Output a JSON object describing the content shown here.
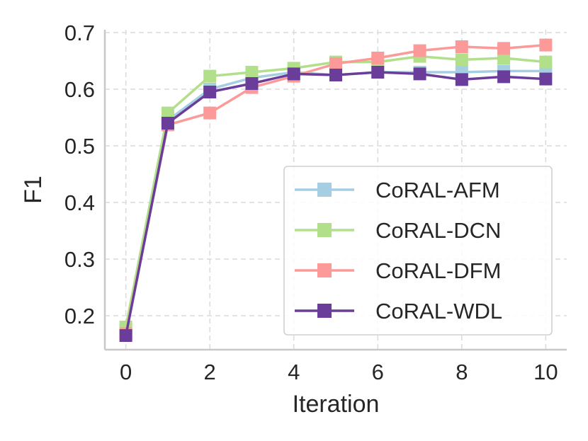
{
  "chart_data": {
    "type": "line",
    "title": "",
    "xlabel": "Iteration",
    "ylabel": "F1",
    "xlim": [
      -0.5,
      10.5
    ],
    "ylim": [
      0.14,
      0.705
    ],
    "x": [
      0,
      1,
      2,
      3,
      4,
      5,
      6,
      7,
      8,
      9,
      10
    ],
    "xticks": [
      "0",
      "2",
      "4",
      "6",
      "8",
      "10"
    ],
    "yticks": [
      "0.2",
      "0.3",
      "0.4",
      "0.5",
      "0.6",
      "0.7"
    ],
    "grid": true,
    "legend_position": "lower-right",
    "marker": "square",
    "series": [
      {
        "name": "CoRAL-AFM",
        "color": "#a6cee3",
        "values": [
          0.175,
          0.545,
          0.6,
          0.62,
          0.63,
          0.625,
          0.63,
          0.63,
          0.63,
          0.632,
          0.632
        ]
      },
      {
        "name": "CoRAL-DCN",
        "color": "#b2df8a",
        "values": [
          0.18,
          0.558,
          0.623,
          0.63,
          0.637,
          0.648,
          0.648,
          0.658,
          0.652,
          0.655,
          0.648
        ]
      },
      {
        "name": "CoRAL-DFM",
        "color": "#fb9a99",
        "values": [
          0.168,
          0.537,
          0.558,
          0.603,
          0.623,
          0.645,
          0.655,
          0.668,
          0.675,
          0.672,
          0.678
        ]
      },
      {
        "name": "CoRAL-WDL",
        "color": "#6a3d9a",
        "values": [
          0.165,
          0.54,
          0.595,
          0.61,
          0.627,
          0.625,
          0.63,
          0.627,
          0.617,
          0.622,
          0.618
        ]
      }
    ]
  }
}
